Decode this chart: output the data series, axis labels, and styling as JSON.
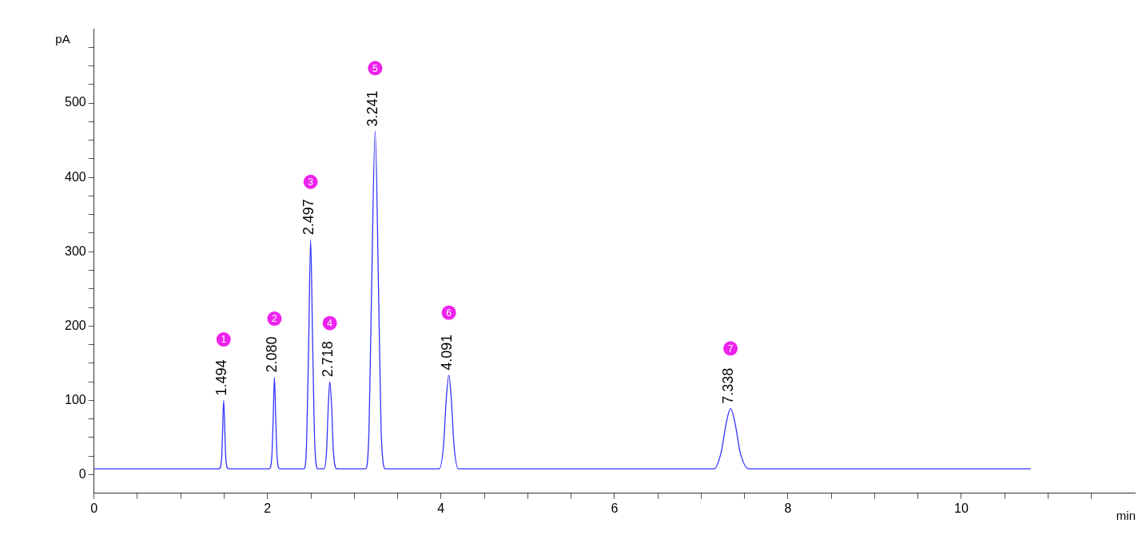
{
  "chart_data": {
    "type": "line",
    "xlabel": "min",
    "ylabel": "pA",
    "xlim": [
      0,
      12
    ],
    "ylim": [
      -25,
      600
    ],
    "xticks": [
      0,
      {
        "value": 0.5,
        "label": null
      },
      {
        "value": 1,
        "label": null
      },
      {
        "value": 1.5,
        "label": null
      },
      2,
      {
        "value": 2.5,
        "label": null
      },
      {
        "value": 3,
        "label": null
      },
      {
        "value": 3.5,
        "label": null
      },
      4,
      {
        "value": 4.5,
        "label": null
      },
      {
        "value": 5,
        "label": null
      },
      {
        "value": 5.5,
        "label": null
      },
      6,
      {
        "value": 6.5,
        "label": null
      },
      {
        "value": 7,
        "label": null
      },
      {
        "value": 7.5,
        "label": null
      },
      8,
      {
        "value": 8.5,
        "label": null
      },
      {
        "value": 9,
        "label": null
      },
      {
        "value": 9.5,
        "label": null
      },
      10,
      {
        "value": 10.5,
        "label": null
      },
      {
        "value": 11,
        "label": null
      },
      {
        "value": 11.5,
        "label": null
      }
    ],
    "yticks": [
      0,
      {
        "value": 25,
        "label": null
      },
      {
        "value": 50,
        "label": null
      },
      {
        "value": 75,
        "label": null
      },
      100,
      {
        "value": 125,
        "label": null
      },
      {
        "value": 150,
        "label": null
      },
      {
        "value": 175,
        "label": null
      },
      200,
      {
        "value": 225,
        "label": null
      },
      {
        "value": 250,
        "label": null
      },
      {
        "value": 275,
        "label": null
      },
      300,
      {
        "value": 325,
        "label": null
      },
      {
        "value": 350,
        "label": null
      },
      {
        "value": 375,
        "label": null
      },
      400,
      {
        "value": 425,
        "label": null
      },
      {
        "value": 450,
        "label": null
      },
      {
        "value": 475,
        "label": null
      },
      500,
      {
        "value": 525,
        "label": null
      },
      {
        "value": 550,
        "label": null
      },
      {
        "value": 575,
        "label": null
      }
    ],
    "grid": false,
    "legend": false,
    "marker": "none",
    "line_style": "solid",
    "series": [
      {
        "color": "#3333ff",
        "x": [
          0,
          1.44,
          1.47,
          1.48,
          1.494,
          1.51,
          1.52,
          1.55,
          2.02,
          2.05,
          2.065,
          2.08,
          2.095,
          2.11,
          2.14,
          2.42,
          2.45,
          2.475,
          2.497,
          2.52,
          2.545,
          2.58,
          2.65,
          2.68,
          2.7,
          2.718,
          2.74,
          2.76,
          2.8,
          3.13,
          3.17,
          3.2,
          3.241,
          3.28,
          3.31,
          3.36,
          3.98,
          4.03,
          4.06,
          4.091,
          4.12,
          4.15,
          4.2,
          7.15,
          7.23,
          7.29,
          7.338,
          7.39,
          7.45,
          7.55,
          10.8
        ],
        "values": [
          8,
          8,
          20,
          50,
          100,
          50,
          20,
          8,
          8,
          25,
          75,
          131,
          75,
          25,
          8,
          8,
          40,
          180,
          316,
          180,
          40,
          8,
          8,
          30,
          90,
          125,
          90,
          30,
          8,
          8,
          60,
          250,
          462,
          250,
          60,
          8,
          8,
          40,
          100,
          134,
          100,
          40,
          8,
          8,
          30,
          70,
          89,
          70,
          30,
          8,
          8
        ]
      }
    ],
    "annotations": [
      {
        "text": "1.494",
        "x": 1.494,
        "y": 100
      },
      {
        "text": "1",
        "x": 1.494,
        "y": 182
      },
      {
        "text": "2.080",
        "x": 2.08,
        "y": 131
      },
      {
        "text": "2",
        "x": 2.08,
        "y": 210
      },
      {
        "text": "2.497",
        "x": 2.497,
        "y": 316
      },
      {
        "text": "3",
        "x": 2.497,
        "y": 394
      },
      {
        "text": "2.718",
        "x": 2.718,
        "y": 125
      },
      {
        "text": "4",
        "x": 2.718,
        "y": 204
      },
      {
        "text": "3.241",
        "x": 3.241,
        "y": 462
      },
      {
        "text": "5",
        "x": 3.241,
        "y": 547
      },
      {
        "text": "4.091",
        "x": 4.091,
        "y": 134
      },
      {
        "text": "6",
        "x": 4.091,
        "y": 218
      },
      {
        "text": "7.338",
        "x": 7.338,
        "y": 89
      },
      {
        "text": "7",
        "x": 7.338,
        "y": 170
      }
    ]
  }
}
